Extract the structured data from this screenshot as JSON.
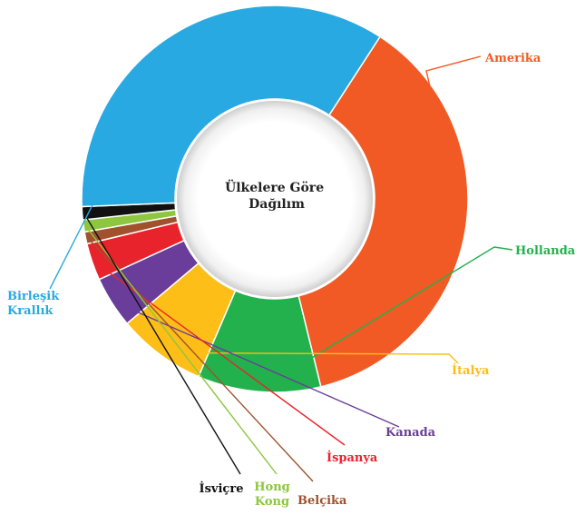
{
  "chart_data": {
    "type": "pie",
    "title": "Ülkelere Göre Dağılım",
    "title_lines": [
      "Ülkelere Göre",
      "Dağılım"
    ],
    "slices": [
      {
        "label": "Amerika",
        "label_lines": [
          "Amerika"
        ],
        "value": 37.0,
        "color": "#F15A24"
      },
      {
        "label": "Hollanda",
        "label_lines": [
          "Hollanda"
        ],
        "value": 10.3,
        "color": "#22B14C"
      },
      {
        "label": "İtalya",
        "label_lines": [
          "İtalya"
        ],
        "value": 7.4,
        "color": "#FDBE18"
      },
      {
        "label": "Kanada",
        "label_lines": [
          "Kanada"
        ],
        "value": 4.3,
        "color": "#6A3D9A"
      },
      {
        "label": "İspanya",
        "label_lines": [
          "İspanya"
        ],
        "value": 3.1,
        "color": "#E8232C"
      },
      {
        "label": "Belçika",
        "label_lines": [
          "Belçika"
        ],
        "value": 1.0,
        "color": "#A0522D"
      },
      {
        "label": "Hong Kong",
        "label_lines": [
          "Hong",
          "Kong"
        ],
        "value": 1.0,
        "color": "#8DC63F"
      },
      {
        "label": "İsviçre",
        "label_lines": [
          "İsviçre"
        ],
        "value": 1.1,
        "color": "#111111"
      },
      {
        "label": "Birleşik Krallık",
        "label_lines": [
          "Birleşik",
          "Krallık"
        ],
        "value": 34.8,
        "color": "#29A9E1"
      }
    ]
  }
}
